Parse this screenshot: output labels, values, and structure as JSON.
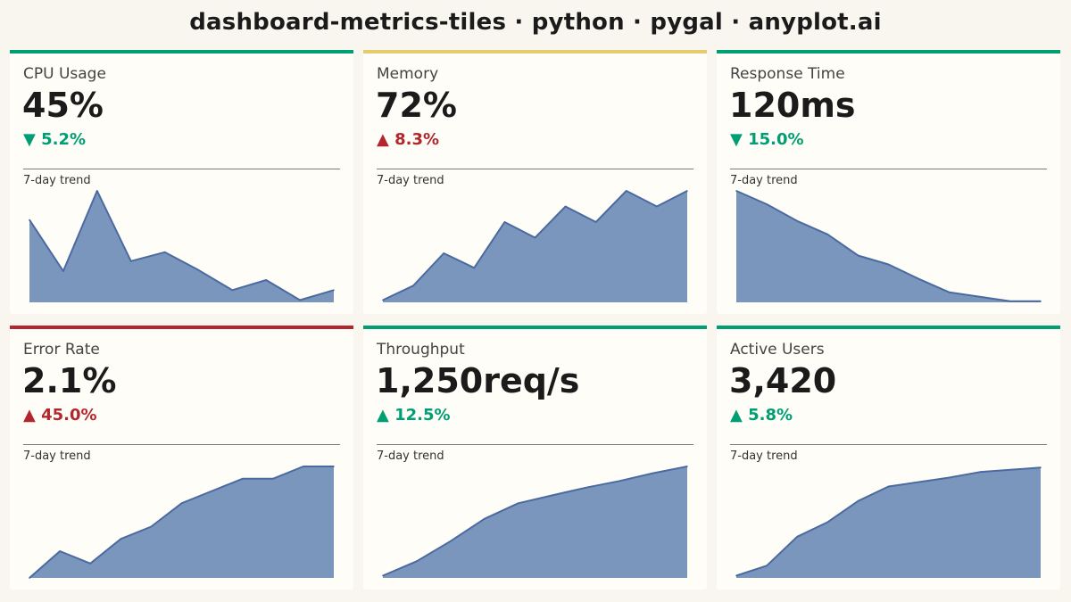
{
  "title": "dashboard-metrics-tiles · python · pygal · anyplot.ai",
  "colors": {
    "background": "#f8f6ef",
    "tile_background": "#fffdf7",
    "good": "#009e73",
    "bad": "#b2272d",
    "neutral_accent": "#e3cb6e",
    "sparkline_fill": "#7b96bd",
    "sparkline_stroke": "#4a6aa0"
  },
  "trend_label": "7-day trend",
  "tiles": [
    {
      "label": "CPU Usage",
      "value": "45%",
      "delta": "▼ 5.2%",
      "status": "good",
      "accent_status": "good"
    },
    {
      "label": "Memory",
      "value": "72%",
      "delta": "▲ 8.3%",
      "status": "bad",
      "accent_status": "neutral"
    },
    {
      "label": "Response Time",
      "value": "120ms",
      "delta": "▼ 15.0%",
      "status": "good",
      "accent_status": "good"
    },
    {
      "label": "Error Rate",
      "value": "2.1%",
      "delta": "▲ 45.0%",
      "status": "bad",
      "accent_status": "bad"
    },
    {
      "label": "Throughput",
      "value": "1,250req/s",
      "delta": "▲ 12.5%",
      "status": "good",
      "accent_status": "good"
    },
    {
      "label": "Active Users",
      "value": "3,420",
      "delta": "▲ 5.8%",
      "status": "good",
      "accent_status": "good"
    }
  ],
  "chart_data": [
    {
      "type": "area",
      "metric": "CPU Usage",
      "values": [
        0.74,
        0.28,
        1.0,
        0.37,
        0.45,
        0.29,
        0.11,
        0.2,
        0.02,
        0.11
      ]
    },
    {
      "type": "area",
      "metric": "Memory",
      "values": [
        0.02,
        0.15,
        0.44,
        0.31,
        0.72,
        0.58,
        0.86,
        0.72,
        1.0,
        0.86,
        1.0
      ]
    },
    {
      "type": "area",
      "metric": "Response Time",
      "values": [
        1.0,
        0.88,
        0.73,
        0.61,
        0.42,
        0.34,
        0.21,
        0.09,
        0.05,
        0.01,
        0.01
      ]
    },
    {
      "type": "area",
      "metric": "Error Rate",
      "values": [
        0.0,
        0.24,
        0.13,
        0.35,
        0.46,
        0.67,
        0.78,
        0.89,
        0.89,
        1.0,
        1.0
      ]
    },
    {
      "type": "area",
      "metric": "Throughput",
      "values": [
        0.02,
        0.15,
        0.33,
        0.53,
        0.67,
        0.74,
        0.81,
        0.87,
        0.94,
        1.0
      ]
    },
    {
      "type": "area",
      "metric": "Active Users",
      "values": [
        0.02,
        0.11,
        0.37,
        0.5,
        0.69,
        0.82,
        0.86,
        0.9,
        0.95,
        0.97,
        0.99
      ]
    }
  ]
}
